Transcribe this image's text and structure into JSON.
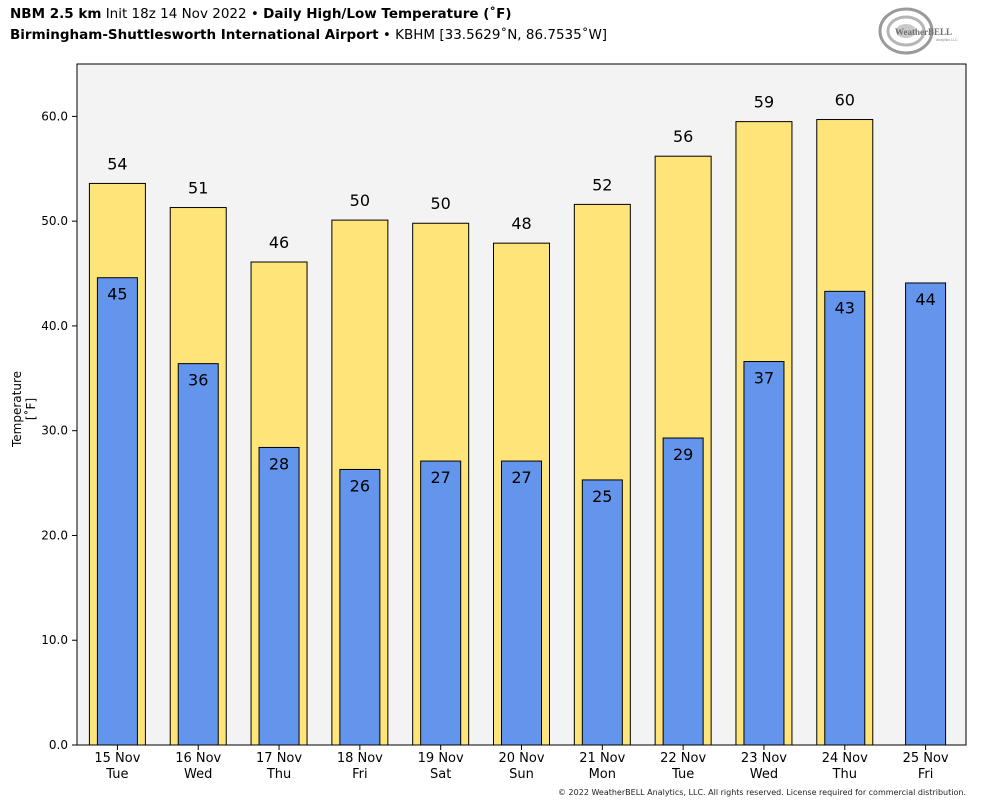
{
  "header": {
    "model": "NBM 2.5 km",
    "init": "Init 18z 14 Nov 2022",
    "bullet": "•",
    "product": "Daily High/Low Temperature (˚F)",
    "station_name": "Birmingham-Shuttlesworth International Airport",
    "station_info": "KBHM [33.5629˚N, 86.7535˚W]"
  },
  "logo": {
    "text": "WeatherBELL",
    "sub": "Analytics LLC",
    "icon": "weatherbell-logo"
  },
  "footer": {
    "copyright": "© 2022 WeatherBELL Analytics, LLC. All rights reserved. License required for commercial distribution."
  },
  "colors": {
    "high": "#FFE47A",
    "low": "#6495ED",
    "plot_bg": "#F3F3F3",
    "outline": "#000000"
  },
  "chart_data": {
    "type": "bar",
    "ylabel": "Temperature [˚F]",
    "ylim": [
      0,
      65
    ],
    "yticks": [
      0,
      10,
      20,
      30,
      40,
      50,
      60
    ],
    "ytick_labels": [
      "0.0",
      "10.0",
      "20.0",
      "30.0",
      "40.0",
      "50.0",
      "60.0"
    ],
    "categories": [
      [
        "15 Nov",
        "Tue"
      ],
      [
        "16 Nov",
        "Wed"
      ],
      [
        "17 Nov",
        "Thu"
      ],
      [
        "18 Nov",
        "Fri"
      ],
      [
        "19 Nov",
        "Sat"
      ],
      [
        "20 Nov",
        "Sun"
      ],
      [
        "21 Nov",
        "Mon"
      ],
      [
        "22 Nov",
        "Tue"
      ],
      [
        "23 Nov",
        "Wed"
      ],
      [
        "24 Nov",
        "Thu"
      ],
      [
        "25 Nov",
        "Fri"
      ]
    ],
    "series": [
      {
        "name": "High",
        "values": [
          53.6,
          51.3,
          46.1,
          50.1,
          49.8,
          47.9,
          51.6,
          56.2,
          59.5,
          59.7,
          null
        ],
        "labels": [
          "54",
          "51",
          "46",
          "50",
          "50",
          "48",
          "52",
          "56",
          "59",
          "60",
          ""
        ]
      },
      {
        "name": "Low",
        "values": [
          44.6,
          36.4,
          28.4,
          26.3,
          27.1,
          27.1,
          25.3,
          29.3,
          36.6,
          43.3,
          44.1
        ],
        "labels": [
          "45",
          "36",
          "28",
          "26",
          "27",
          "27",
          "25",
          "29",
          "37",
          "43",
          "44"
        ]
      }
    ],
    "grid": false,
    "legend": "none"
  }
}
